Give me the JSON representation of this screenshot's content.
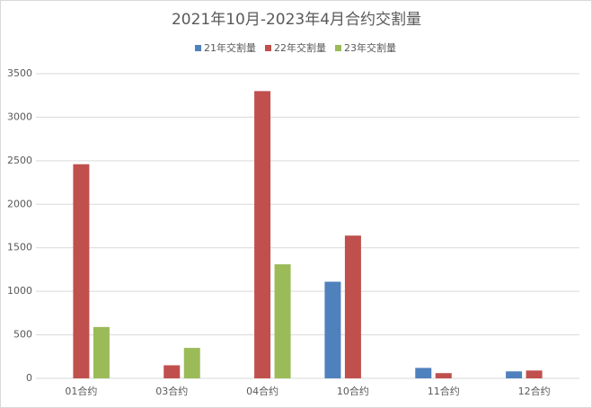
{
  "chart_data": {
    "type": "bar",
    "title": "2021年10月-2023年4月合约交割量",
    "categories": [
      "01合约",
      "03合约",
      "04合约",
      "10合约",
      "11合约",
      "12合约"
    ],
    "series": [
      {
        "name": "21年交割量",
        "color": "#4f81bd",
        "values": [
          null,
          null,
          null,
          1110,
          120,
          80
        ]
      },
      {
        "name": "22年交割量",
        "color": "#c0504d",
        "values": [
          2460,
          150,
          3300,
          1640,
          60,
          90
        ]
      },
      {
        "name": "23年交割量",
        "color": "#9bbb59",
        "values": [
          590,
          350,
          1310,
          null,
          null,
          null
        ]
      }
    ],
    "ylim": [
      0,
      3500
    ],
    "yticks": [
      0,
      500,
      1000,
      1500,
      2000,
      2500,
      3000,
      3500
    ],
    "grid": true,
    "legend": "top"
  }
}
